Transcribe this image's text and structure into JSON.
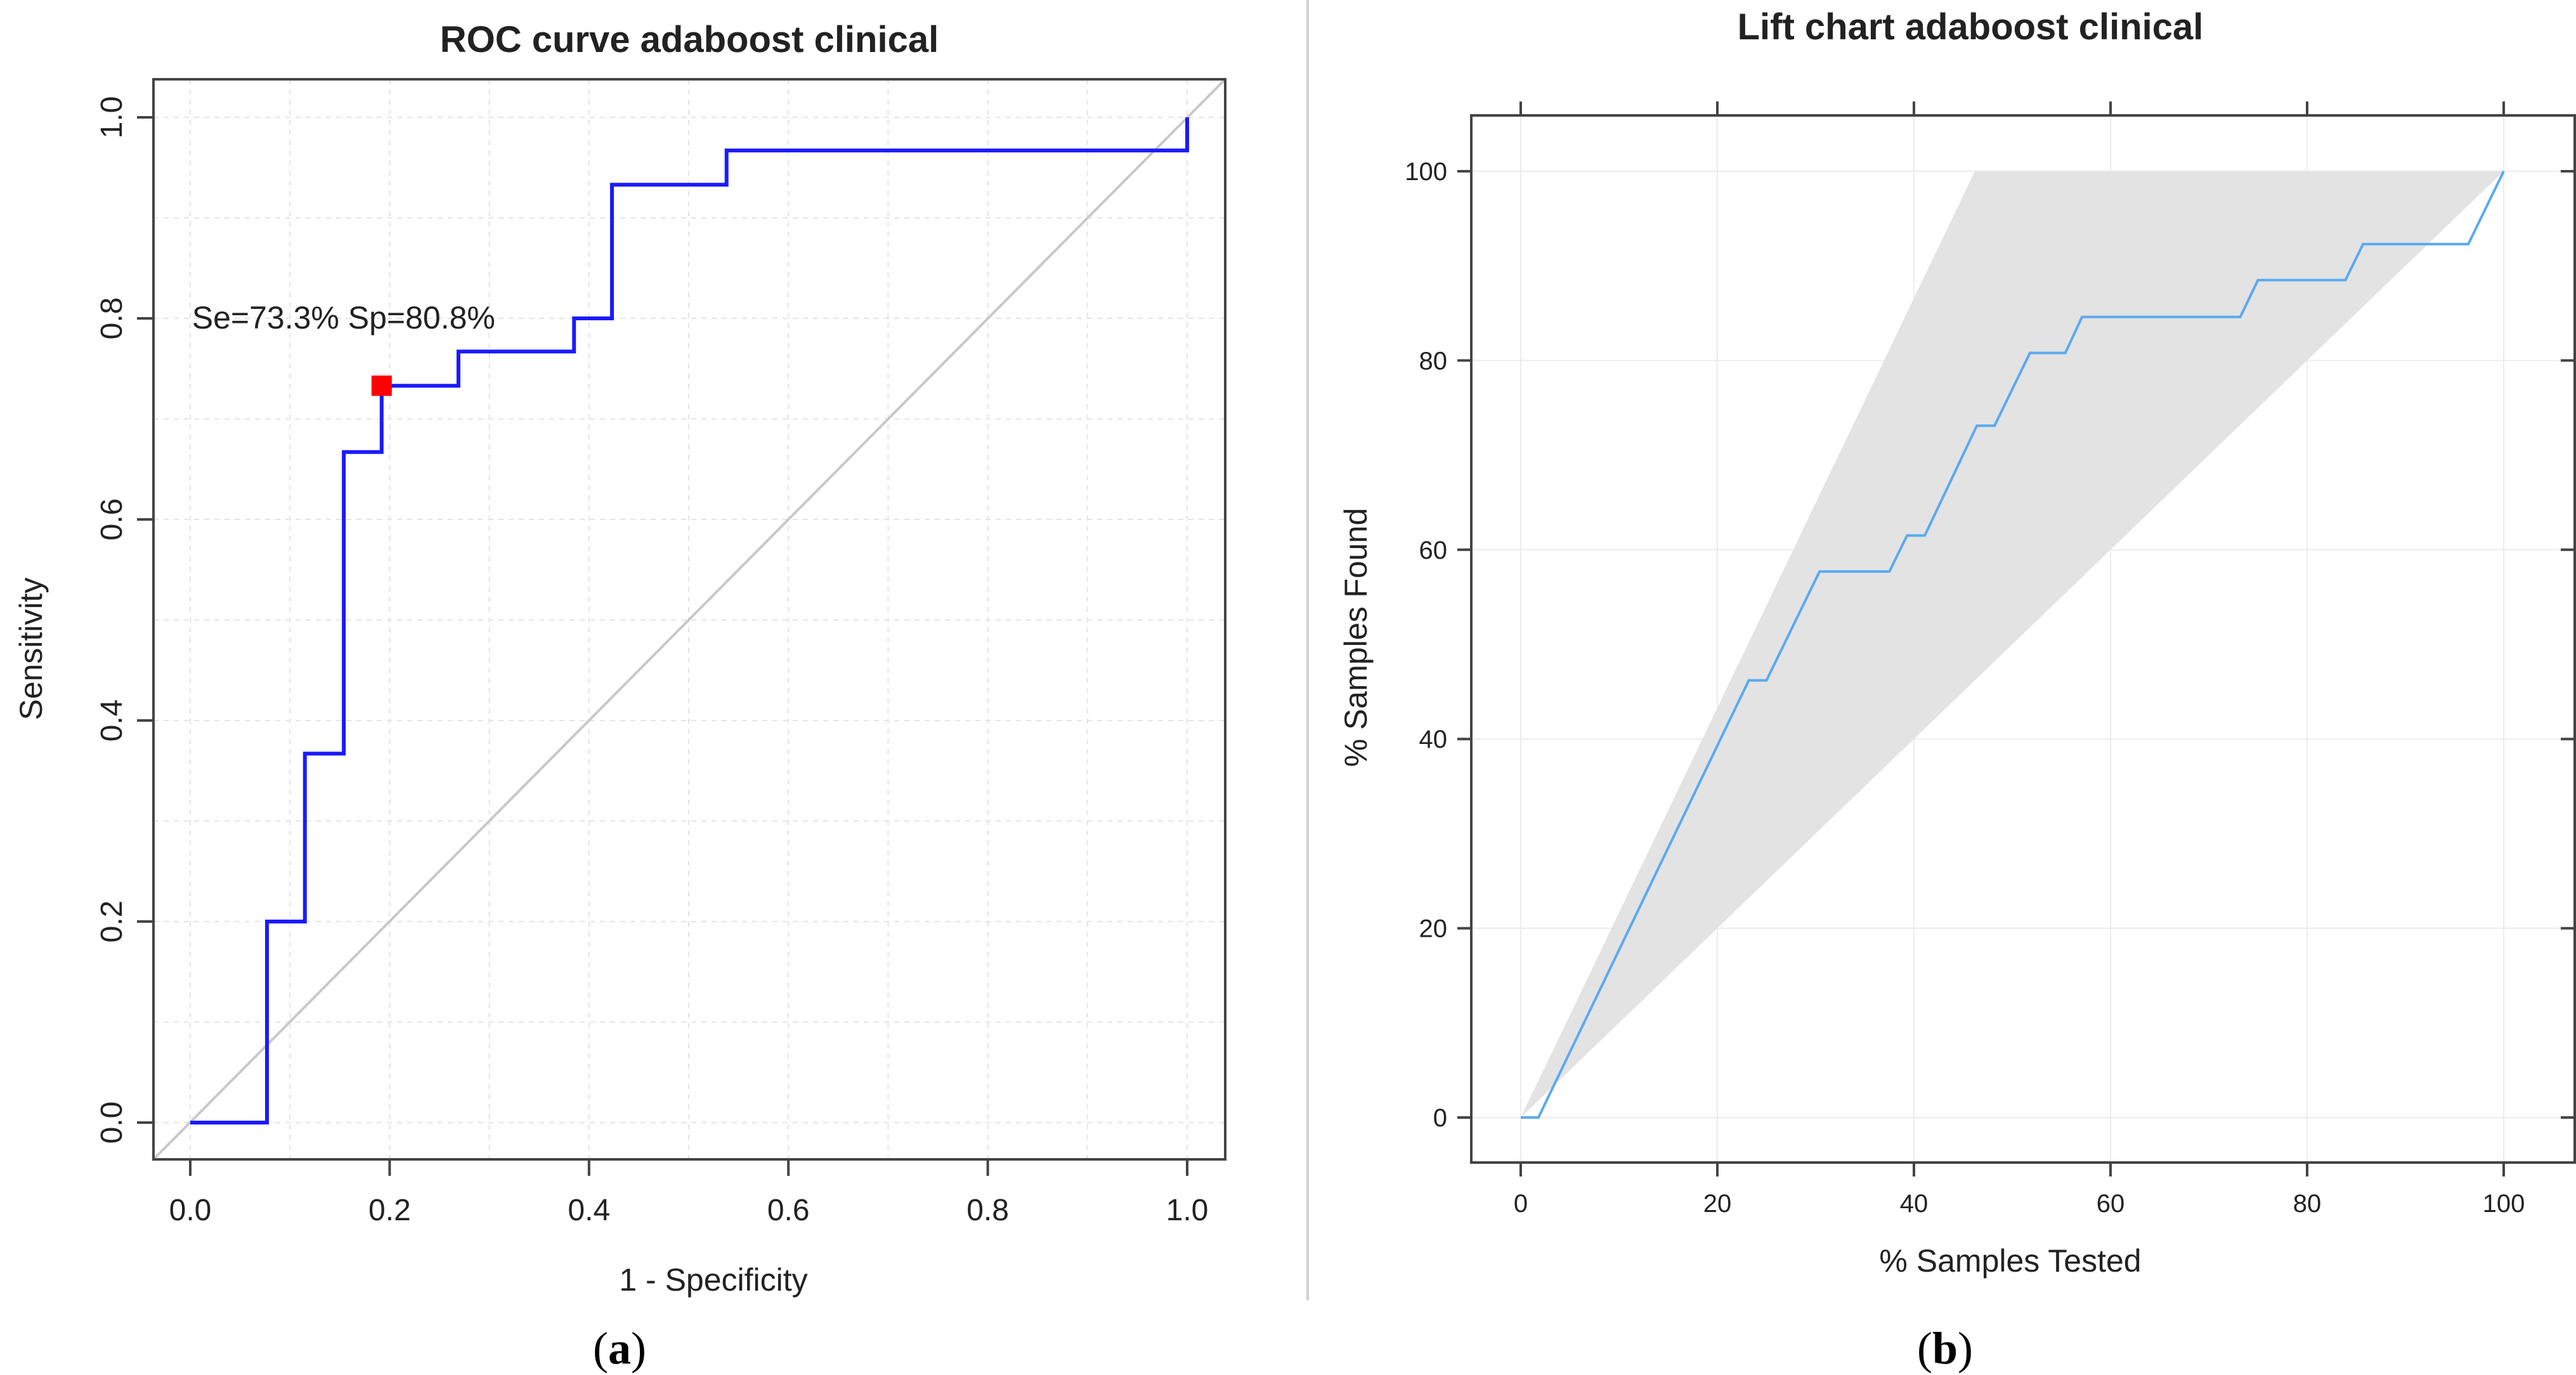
{
  "chart_data": [
    {
      "type": "line",
      "title": "ROC curve adaboost clinical",
      "xlabel": "1 - Specificity",
      "ylabel": "Sensitivity",
      "xlim": [
        0,
        1
      ],
      "ylim": [
        0,
        1
      ],
      "x_ticks": [
        0.0,
        0.2,
        0.4,
        0.6,
        0.8,
        1.0
      ],
      "y_ticks": [
        0.0,
        0.2,
        0.4,
        0.6,
        0.8,
        1.0
      ],
      "x_tick_labels": [
        "0.0",
        "0.2",
        "0.4",
        "0.6",
        "0.8",
        "1.0"
      ],
      "y_tick_labels": [
        "0.0",
        "0.2",
        "0.4",
        "0.6",
        "0.8",
        "1.0"
      ],
      "grid": true,
      "series": [
        {
          "name": "ROC",
          "color": "#1a1aff",
          "x": [
            0.0,
            0.077,
            0.077,
            0.115,
            0.115,
            0.154,
            0.154,
            0.192,
            0.192,
            0.269,
            0.269,
            0.385,
            0.385,
            0.423,
            0.423,
            0.538,
            0.538,
            1.0,
            1.0
          ],
          "y": [
            0.0,
            0.0,
            0.2,
            0.2,
            0.367,
            0.367,
            0.667,
            0.667,
            0.733,
            0.733,
            0.767,
            0.767,
            0.8,
            0.8,
            0.933,
            0.933,
            0.967,
            0.967,
            1.0
          ]
        },
        {
          "name": "reference",
          "color": "#c8c8c8",
          "x": [
            0,
            1
          ],
          "y": [
            0,
            1
          ]
        }
      ],
      "point": {
        "x": 0.192,
        "y": 0.733,
        "color": "#ff0000"
      },
      "annotation": "Se=73.3% Sp=80.8%",
      "panel_label": {
        "open": "(",
        "letter": "a",
        "close": ")"
      }
    },
    {
      "type": "line",
      "title": "Lift chart adaboost clinical",
      "xlabel": "% Samples Tested",
      "ylabel": "% Samples Found",
      "xlim": [
        -5,
        105
      ],
      "ylim": [
        -5,
        105
      ],
      "x_ticks": [
        0,
        20,
        40,
        60,
        80,
        100
      ],
      "y_ticks": [
        0,
        20,
        40,
        60,
        80,
        100
      ],
      "x_tick_labels": [
        "0",
        "20",
        "40",
        "60",
        "80",
        "100"
      ],
      "y_tick_labels": [
        "0",
        "20",
        "40",
        "60",
        "80",
        "100"
      ],
      "grid": true,
      "band": {
        "color": "#e3e3e3",
        "x": [
          0,
          46.2,
          100,
          0
        ],
        "y": [
          0,
          100,
          100,
          0
        ]
      },
      "series": [
        {
          "name": "lift",
          "color": "#5aaaf0",
          "x": [
            0,
            1.8,
            23.2,
            25,
            30.4,
            37.5,
            39.3,
            41.1,
            46.4,
            48.2,
            51.8,
            55.4,
            57.1,
            73.2,
            75,
            83.9,
            85.7,
            96.4,
            100
          ],
          "y": [
            0,
            0,
            46.2,
            46.2,
            57.7,
            57.7,
            61.5,
            61.5,
            73.1,
            73.1,
            80.8,
            80.8,
            84.6,
            84.6,
            88.5,
            88.5,
            92.3,
            92.3,
            100
          ]
        }
      ],
      "panel_label": {
        "open": "(",
        "letter": "b",
        "close": ")"
      }
    }
  ]
}
